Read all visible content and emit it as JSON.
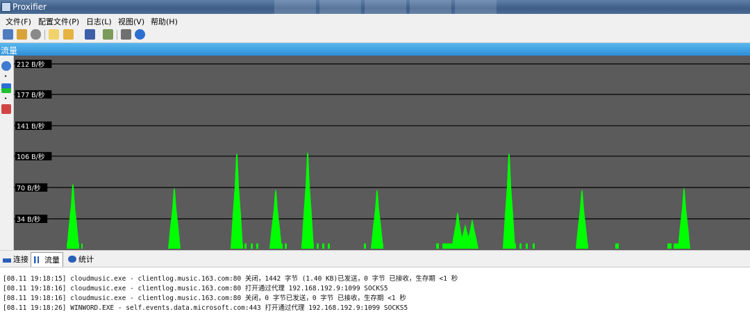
{
  "window": {
    "title": "Proxifier"
  },
  "menu": [
    "文件(F)",
    "配置文件(P)",
    "日志(L)",
    "视图(V)",
    "帮助(H)"
  ],
  "toolbar_icons": [
    "connect-icon",
    "profile-icon",
    "proxy-servers-icon",
    "new-profile-icon",
    "open-profile-icon",
    "save-profile-icon",
    "export-icon",
    "print-icon",
    "help-icon"
  ],
  "panel": {
    "title": "流量"
  },
  "side_icons": [
    "history-icon",
    "color-icon",
    "clear-icon"
  ],
  "chart_data": {
    "type": "area",
    "series_color": "#00ff00",
    "background": "#5b5b5b",
    "gridline_color": "#000000",
    "ylabels": [
      "212 B/秒",
      "177 B/秒",
      "141 B/秒",
      "106 B/秒",
      "70 B/秒",
      "34 B/秒"
    ],
    "yticks": [
      212,
      177,
      141,
      106,
      70,
      34
    ],
    "ylim": [
      0,
      220
    ],
    "x_range": [
      0,
      1060
    ],
    "peaks": [
      {
        "x": 85,
        "value": 75
      },
      {
        "x": 231,
        "value": 70
      },
      {
        "x": 321,
        "value": 110
      },
      {
        "x": 377,
        "value": 68
      },
      {
        "x": 423,
        "value": 111
      },
      {
        "x": 523,
        "value": 68
      },
      {
        "x": 639,
        "value": 42
      },
      {
        "x": 650,
        "value": 28
      },
      {
        "x": 660,
        "value": 34
      },
      {
        "x": 713,
        "value": 110
      },
      {
        "x": 818,
        "value": 68
      },
      {
        "x": 965,
        "value": 70
      }
    ],
    "blocks": [
      {
        "x": 76,
        "w": 18,
        "value": 6
      },
      {
        "x": 97,
        "w": 2,
        "value": 6
      },
      {
        "x": 223,
        "w": 15,
        "value": 6
      },
      {
        "x": 313,
        "w": 17,
        "value": 6
      },
      {
        "x": 332,
        "w": 3,
        "value": 6
      },
      {
        "x": 341,
        "w": 3,
        "value": 6
      },
      {
        "x": 349,
        "w": 3,
        "value": 6
      },
      {
        "x": 369,
        "w": 18,
        "value": 6
      },
      {
        "x": 390,
        "w": 3,
        "value": 6
      },
      {
        "x": 414,
        "w": 18,
        "value": 6
      },
      {
        "x": 436,
        "w": 3,
        "value": 6
      },
      {
        "x": 444,
        "w": 3,
        "value": 6
      },
      {
        "x": 452,
        "w": 3,
        "value": 6
      },
      {
        "x": 504,
        "w": 3,
        "value": 6
      },
      {
        "x": 515,
        "w": 17,
        "value": 6
      },
      {
        "x": 608,
        "w": 4,
        "value": 6
      },
      {
        "x": 617,
        "w": 47,
        "value": 6
      },
      {
        "x": 706,
        "w": 17,
        "value": 6
      },
      {
        "x": 728,
        "w": 3,
        "value": 6
      },
      {
        "x": 737,
        "w": 3,
        "value": 6
      },
      {
        "x": 747,
        "w": 3,
        "value": 6
      },
      {
        "x": 810,
        "w": 17,
        "value": 6
      },
      {
        "x": 866,
        "w": 5,
        "value": 6
      },
      {
        "x": 941,
        "w": 6,
        "value": 6
      },
      {
        "x": 950,
        "w": 20,
        "value": 6
      }
    ]
  },
  "tabs": [
    {
      "label": "连接",
      "icon": "connections-icon"
    },
    {
      "label": "流量",
      "icon": "traffic-icon"
    },
    {
      "label": "统计",
      "icon": "statistics-icon"
    }
  ],
  "log": [
    "[08.11 19:18:15] cloudmusic.exe - clientlog.music.163.com:80 关闭，1442 字节 (1.40 KB)已发送，0 字节 已接收，生存期 <1 秒",
    "[08.11 19:18:16] cloudmusic.exe - clientlog.music.163.com:80 打开通过代理 192.168.192.9:1099 SOCKS5",
    "[08.11 19:18:16] cloudmusic.exe - clientlog.music.163.com:80 关闭，0 字节已发送，0 字节 已接收，生存期 <1 秒",
    "[08.11 19:18:26] WINWORD.EXE - self.events.data.microsoft.com:443 打开通过代理 192.168.192.9:1099 SOCKS5"
  ]
}
